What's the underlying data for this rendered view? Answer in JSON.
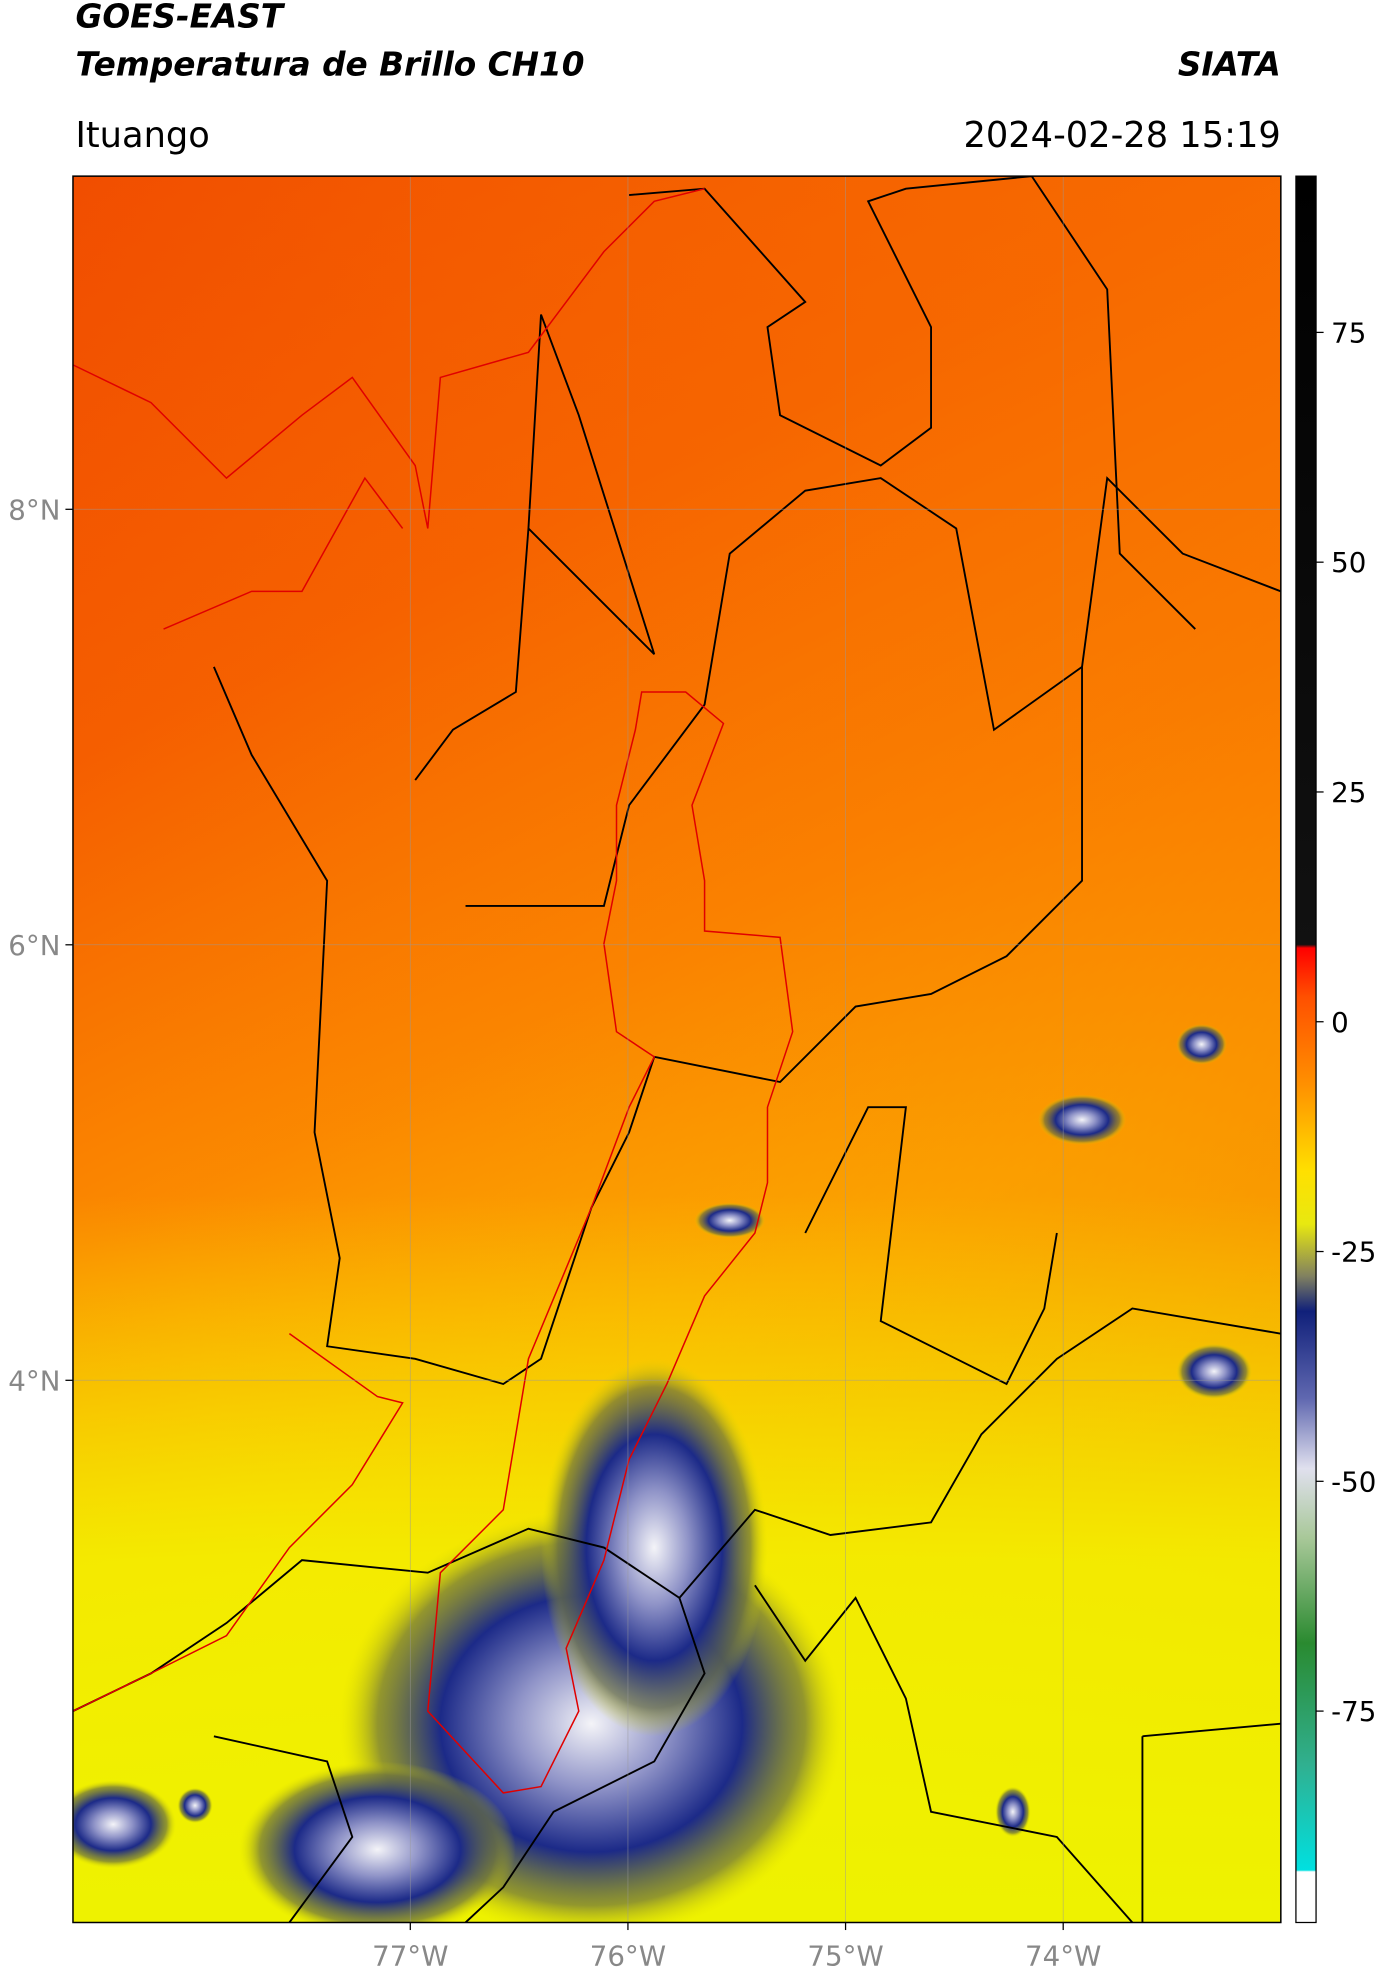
{
  "chart_data": {
    "type": "map",
    "title": "GOES-EAST",
    "subtitle": "Temperatura de Brillo CH10",
    "source": "SIATA",
    "region": "Ituango",
    "datetime": "2024-02-28 15:19",
    "xlim": [
      -78.55,
      -73.0
    ],
    "ylim": [
      1.51,
      9.53
    ],
    "xticks": [
      {
        "value": -77,
        "label": "77°W"
      },
      {
        "value": -76,
        "label": "76°W"
      },
      {
        "value": -75,
        "label": "75°W"
      },
      {
        "value": -74,
        "label": "74°W"
      }
    ],
    "yticks": [
      {
        "value": 8,
        "label": "8°N"
      },
      {
        "value": 6,
        "label": "6°N"
      },
      {
        "value": 4,
        "label": "4°N"
      }
    ],
    "grid": true,
    "colorbar": {
      "lim": [
        -98,
        92
      ],
      "ticks": [
        75,
        50,
        25,
        0,
        -25,
        -50,
        -75
      ]
    }
  }
}
